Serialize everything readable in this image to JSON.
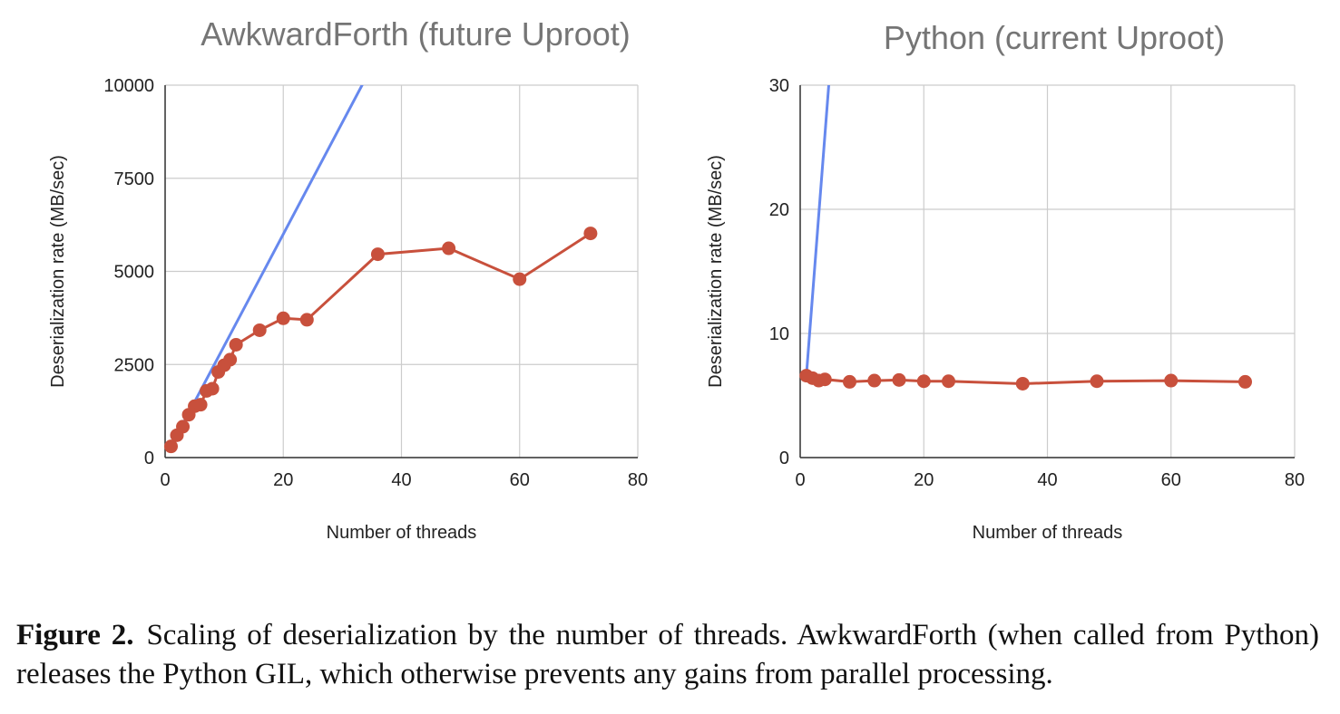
{
  "chart_data": [
    {
      "type": "line",
      "title": "AwkwardForth (future Uproot)",
      "xlabel": "Number of threads",
      "ylabel": "Deserialization rate (MB/sec)",
      "xlim": [
        0,
        80
      ],
      "ylim": [
        0,
        10000
      ],
      "xticks": [
        "0",
        "20",
        "40",
        "60",
        "80"
      ],
      "yticks": [
        "0",
        "2500",
        "5000",
        "7500",
        "10000"
      ],
      "grid": true,
      "colors": {
        "measured": "#c8503c",
        "ideal": "#6688ee"
      },
      "ideal_line": {
        "x": [
          1,
          34
        ],
        "y": [
          300,
          10200
        ]
      },
      "series": [
        {
          "x": [
            1,
            2,
            3,
            4,
            5,
            6,
            7,
            8,
            9,
            10,
            11,
            12,
            16,
            20,
            24,
            36,
            48,
            60,
            72
          ],
          "y": [
            300,
            600,
            830,
            1150,
            1380,
            1420,
            1790,
            1850,
            2300,
            2480,
            2630,
            3030,
            3420,
            3740,
            3700,
            5460,
            5620,
            4790,
            6020
          ]
        }
      ]
    },
    {
      "type": "line",
      "title": "Python (current Uproot)",
      "xlabel": "Number of threads",
      "ylabel": "Deserialization rate (MB/sec)",
      "xlim": [
        0,
        80
      ],
      "ylim": [
        0,
        30
      ],
      "xticks": [
        "0",
        "20",
        "40",
        "60",
        "80"
      ],
      "yticks": [
        "0",
        "10",
        "20",
        "30"
      ],
      "grid": true,
      "colors": {
        "measured": "#c8503c",
        "ideal": "#6688ee"
      },
      "ideal_line": {
        "x": [
          1,
          4.7
        ],
        "y": [
          6.6,
          30.5
        ]
      },
      "series": [
        {
          "x": [
            1,
            2,
            3,
            4,
            8,
            12,
            16,
            20,
            24,
            36,
            48,
            60,
            72
          ],
          "y": [
            6.6,
            6.4,
            6.2,
            6.3,
            6.1,
            6.2,
            6.25,
            6.15,
            6.15,
            5.95,
            6.15,
            6.2,
            6.1
          ]
        }
      ]
    }
  ],
  "caption": {
    "label": "Figure 2.",
    "text": "Scaling of deserialization by the number of threads.  AwkwardForth (when called from Python) releases the Python GIL, which otherwise prevents any gains from parallel processing."
  }
}
